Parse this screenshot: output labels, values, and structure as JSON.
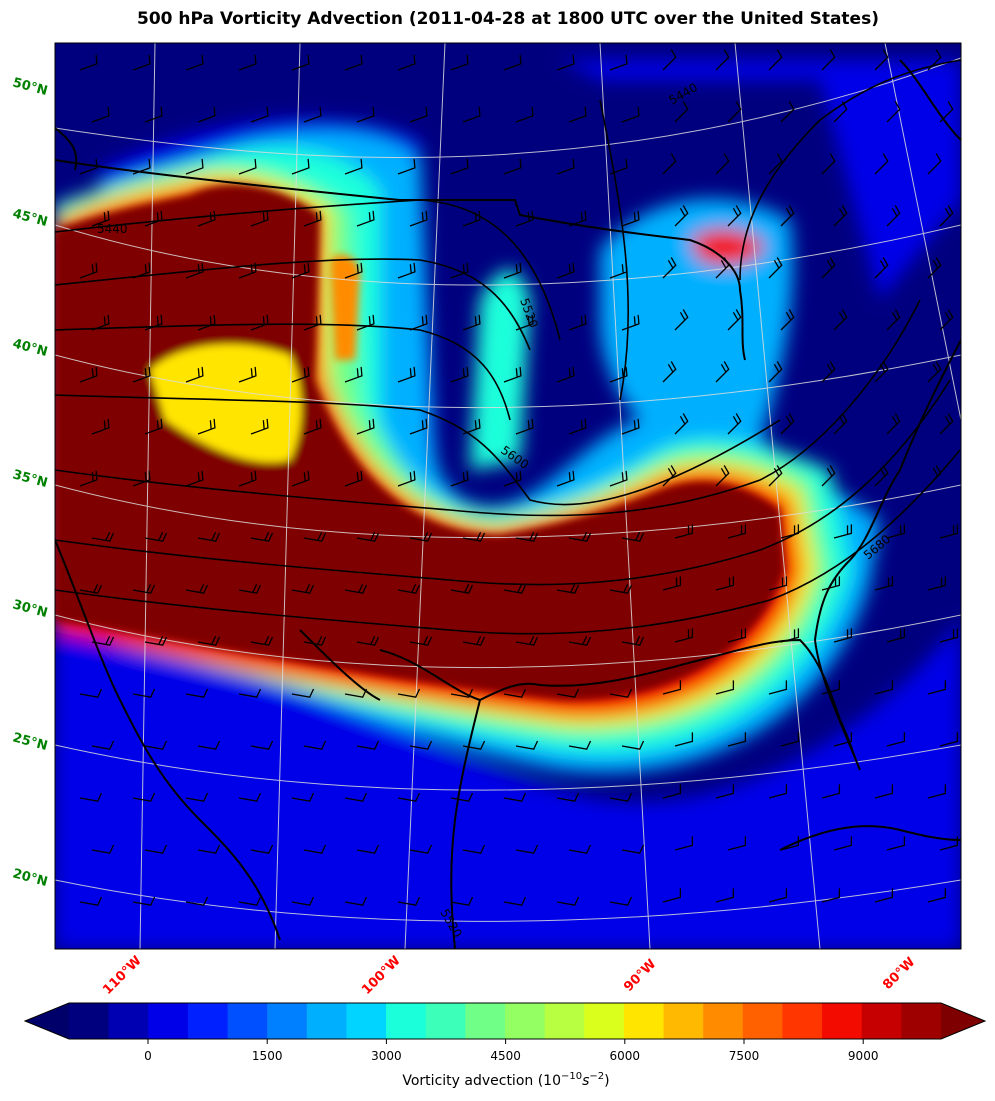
{
  "title": "500 hPa Vorticity Advection (2011-04-28 at 1800 UTC over the United States)",
  "latitude_labels": [
    "50°N",
    "45°N",
    "40°N",
    "35°N",
    "30°N",
    "25°N",
    "20°N"
  ],
  "longitude_labels": [
    "110°W",
    "100°W",
    "90°W",
    "80°W"
  ],
  "height_contour_labels": [
    "5440",
    "5520",
    "5600",
    "5680",
    "5440",
    "5520"
  ],
  "colorbar": {
    "label_text": "Vorticity advection (10",
    "label_exp1": "−10",
    "label_mid": "s",
    "label_exp2": "−2",
    "label_close": ")",
    "ticks": [
      "0",
      "1500",
      "3000",
      "4500",
      "6000",
      "7500",
      "9000"
    ],
    "colors": [
      "#00007f",
      "#0000b2",
      "#0000e8",
      "#0020ff",
      "#0050ff",
      "#0080ff",
      "#00b0ff",
      "#00d4ff",
      "#1cffdb",
      "#3cffba",
      "#70ff87",
      "#93ff63",
      "#b7ff40",
      "#dbff1c",
      "#ffe500",
      "#ffb900",
      "#ff8c00",
      "#ff6000",
      "#ff3600",
      "#f40b00",
      "#c60000",
      "#9e0000"
    ],
    "extend_low_color": "#00006a",
    "extend_high_color": "#7f0000"
  },
  "field_colors": {
    "deep_blue": "#00007f",
    "blue": "#0000e8",
    "mid_blue": "#0050ff",
    "light_blue": "#00b0ff",
    "cyan": "#1cffdb",
    "green": "#70ff87",
    "yellow": "#ffe500",
    "orange": "#ff8c00",
    "red": "#f40b00",
    "dark_red": "#7f0000"
  }
}
